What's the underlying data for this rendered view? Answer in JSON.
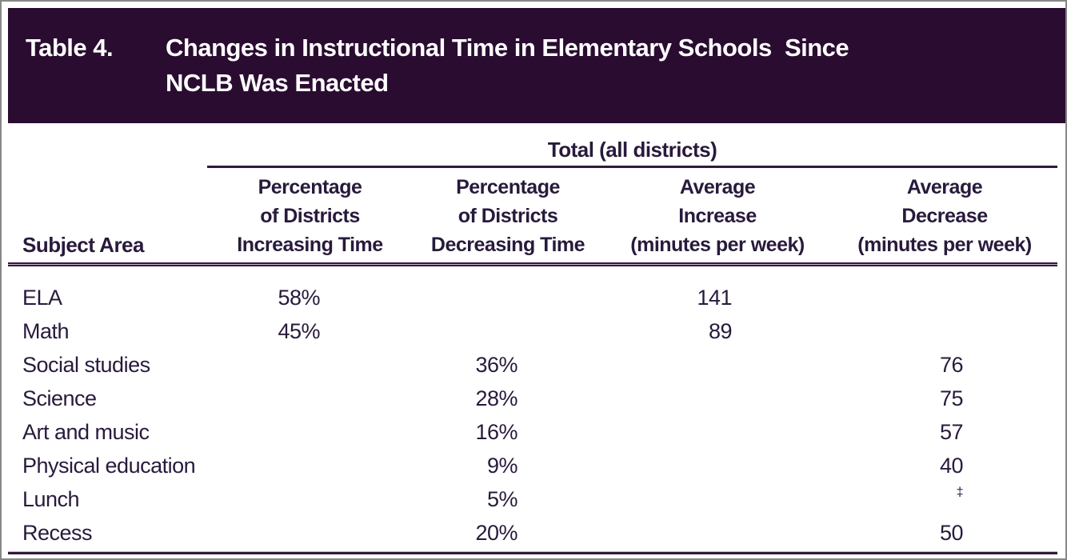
{
  "colors": {
    "bar_bg": "#2a0c31",
    "bar_text": "#ffffff",
    "ink": "#281a3c",
    "rule": "#31193b",
    "frame": "#878787"
  },
  "header": {
    "label": "Table 4.",
    "title": "Changes in Instructional Time in Elementary Schools  Since\nNCLB Was Enacted"
  },
  "table": {
    "span_header": "Total (all districts)",
    "columns": [
      "Subject Area",
      "Percentage\nof Districts\nIncreasing Time",
      "Percentage\nof Districts\nDecreasing Time",
      "Average\nIncrease\n(minutes per week)",
      "Average\nDecrease\n(minutes per week)"
    ],
    "rows": [
      {
        "subject": "ELA",
        "pct_increase": "58%",
        "pct_decrease": "",
        "avg_increase": "141",
        "avg_decrease": ""
      },
      {
        "subject": "Math",
        "pct_increase": "45%",
        "pct_decrease": "",
        "avg_increase": "89",
        "avg_decrease": ""
      },
      {
        "subject": "Social studies",
        "pct_increase": "",
        "pct_decrease": "36%",
        "avg_increase": "",
        "avg_decrease": "76"
      },
      {
        "subject": "Science",
        "pct_increase": "",
        "pct_decrease": "28%",
        "avg_increase": "",
        "avg_decrease": "75"
      },
      {
        "subject": "Art and music",
        "pct_increase": "",
        "pct_decrease": "16%",
        "avg_increase": "",
        "avg_decrease": "57"
      },
      {
        "subject": "Physical education",
        "pct_increase": "",
        "pct_decrease": "9%",
        "avg_increase": "",
        "avg_decrease": "40"
      },
      {
        "subject": "Lunch",
        "pct_increase": "",
        "pct_decrease": "5%",
        "avg_increase": "",
        "avg_decrease": "‡"
      },
      {
        "subject": "Recess",
        "pct_increase": "",
        "pct_decrease": "20%",
        "avg_increase": "",
        "avg_decrease": "50"
      }
    ]
  }
}
